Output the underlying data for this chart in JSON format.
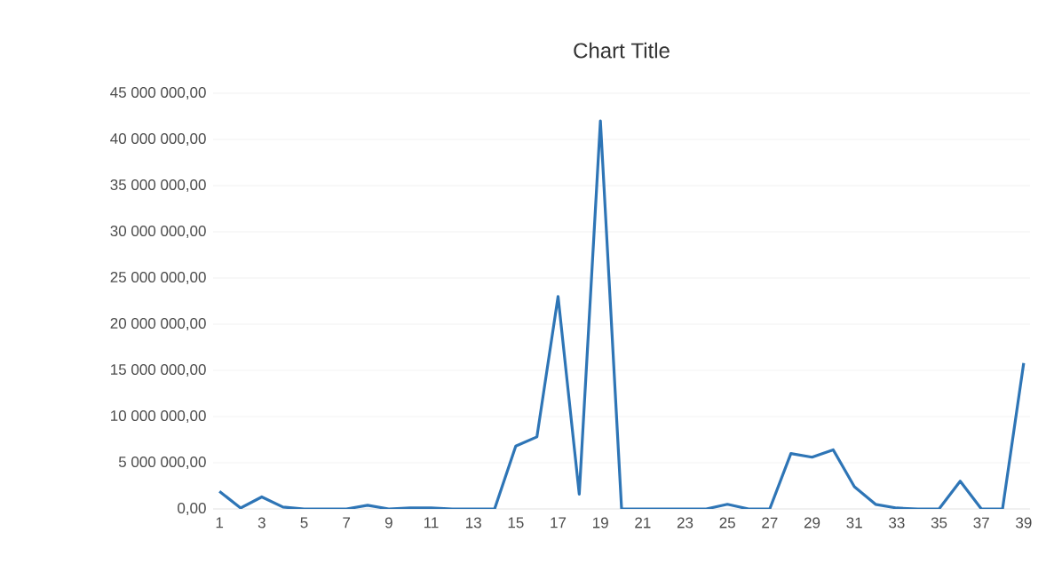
{
  "chart_data": {
    "type": "line",
    "title": "Chart Title",
    "categories": [
      "1",
      null,
      "3",
      null,
      "5",
      null,
      "7",
      null,
      "9",
      null,
      "11",
      null,
      "13",
      null,
      "15",
      null,
      "17",
      null,
      "19",
      null,
      "21",
      null,
      "23",
      null,
      "25",
      null,
      "27",
      null,
      "29",
      null,
      "31",
      null,
      "33",
      null,
      "35",
      null,
      "37",
      null,
      "39"
    ],
    "series": [
      {
        "color": "#2e75b6",
        "values": [
          1900000,
          100000,
          1300000,
          200000,
          0,
          0,
          0,
          400000,
          0,
          100000,
          100000,
          0,
          0,
          0,
          6800000,
          7800000,
          23000000,
          1600000,
          42000000,
          0,
          0,
          0,
          0,
          0,
          500000,
          0,
          0,
          6000000,
          5600000,
          6400000,
          2400000,
          500000,
          100000,
          0,
          0,
          3000000,
          0,
          0,
          15800000
        ]
      }
    ],
    "ylim": [
      0,
      45000000
    ],
    "yticks": [
      {
        "value": 0,
        "label": "0,00"
      },
      {
        "value": 5000000,
        "label": "5 000 000,00"
      },
      {
        "value": 10000000,
        "label": "10 000 000,00"
      },
      {
        "value": 15000000,
        "label": "15 000 000,00"
      },
      {
        "value": 20000000,
        "label": "20 000 000,00"
      },
      {
        "value": 25000000,
        "label": "25 000 000,00"
      },
      {
        "value": 30000000,
        "label": "30 000 000,00"
      },
      {
        "value": 35000000,
        "label": "35 000 000,00"
      },
      {
        "value": 40000000,
        "label": "40 000 000,00"
      },
      {
        "value": 45000000,
        "label": "45 000 000,00"
      }
    ],
    "grid": "y",
    "marker": "none",
    "line_style": "solid"
  }
}
